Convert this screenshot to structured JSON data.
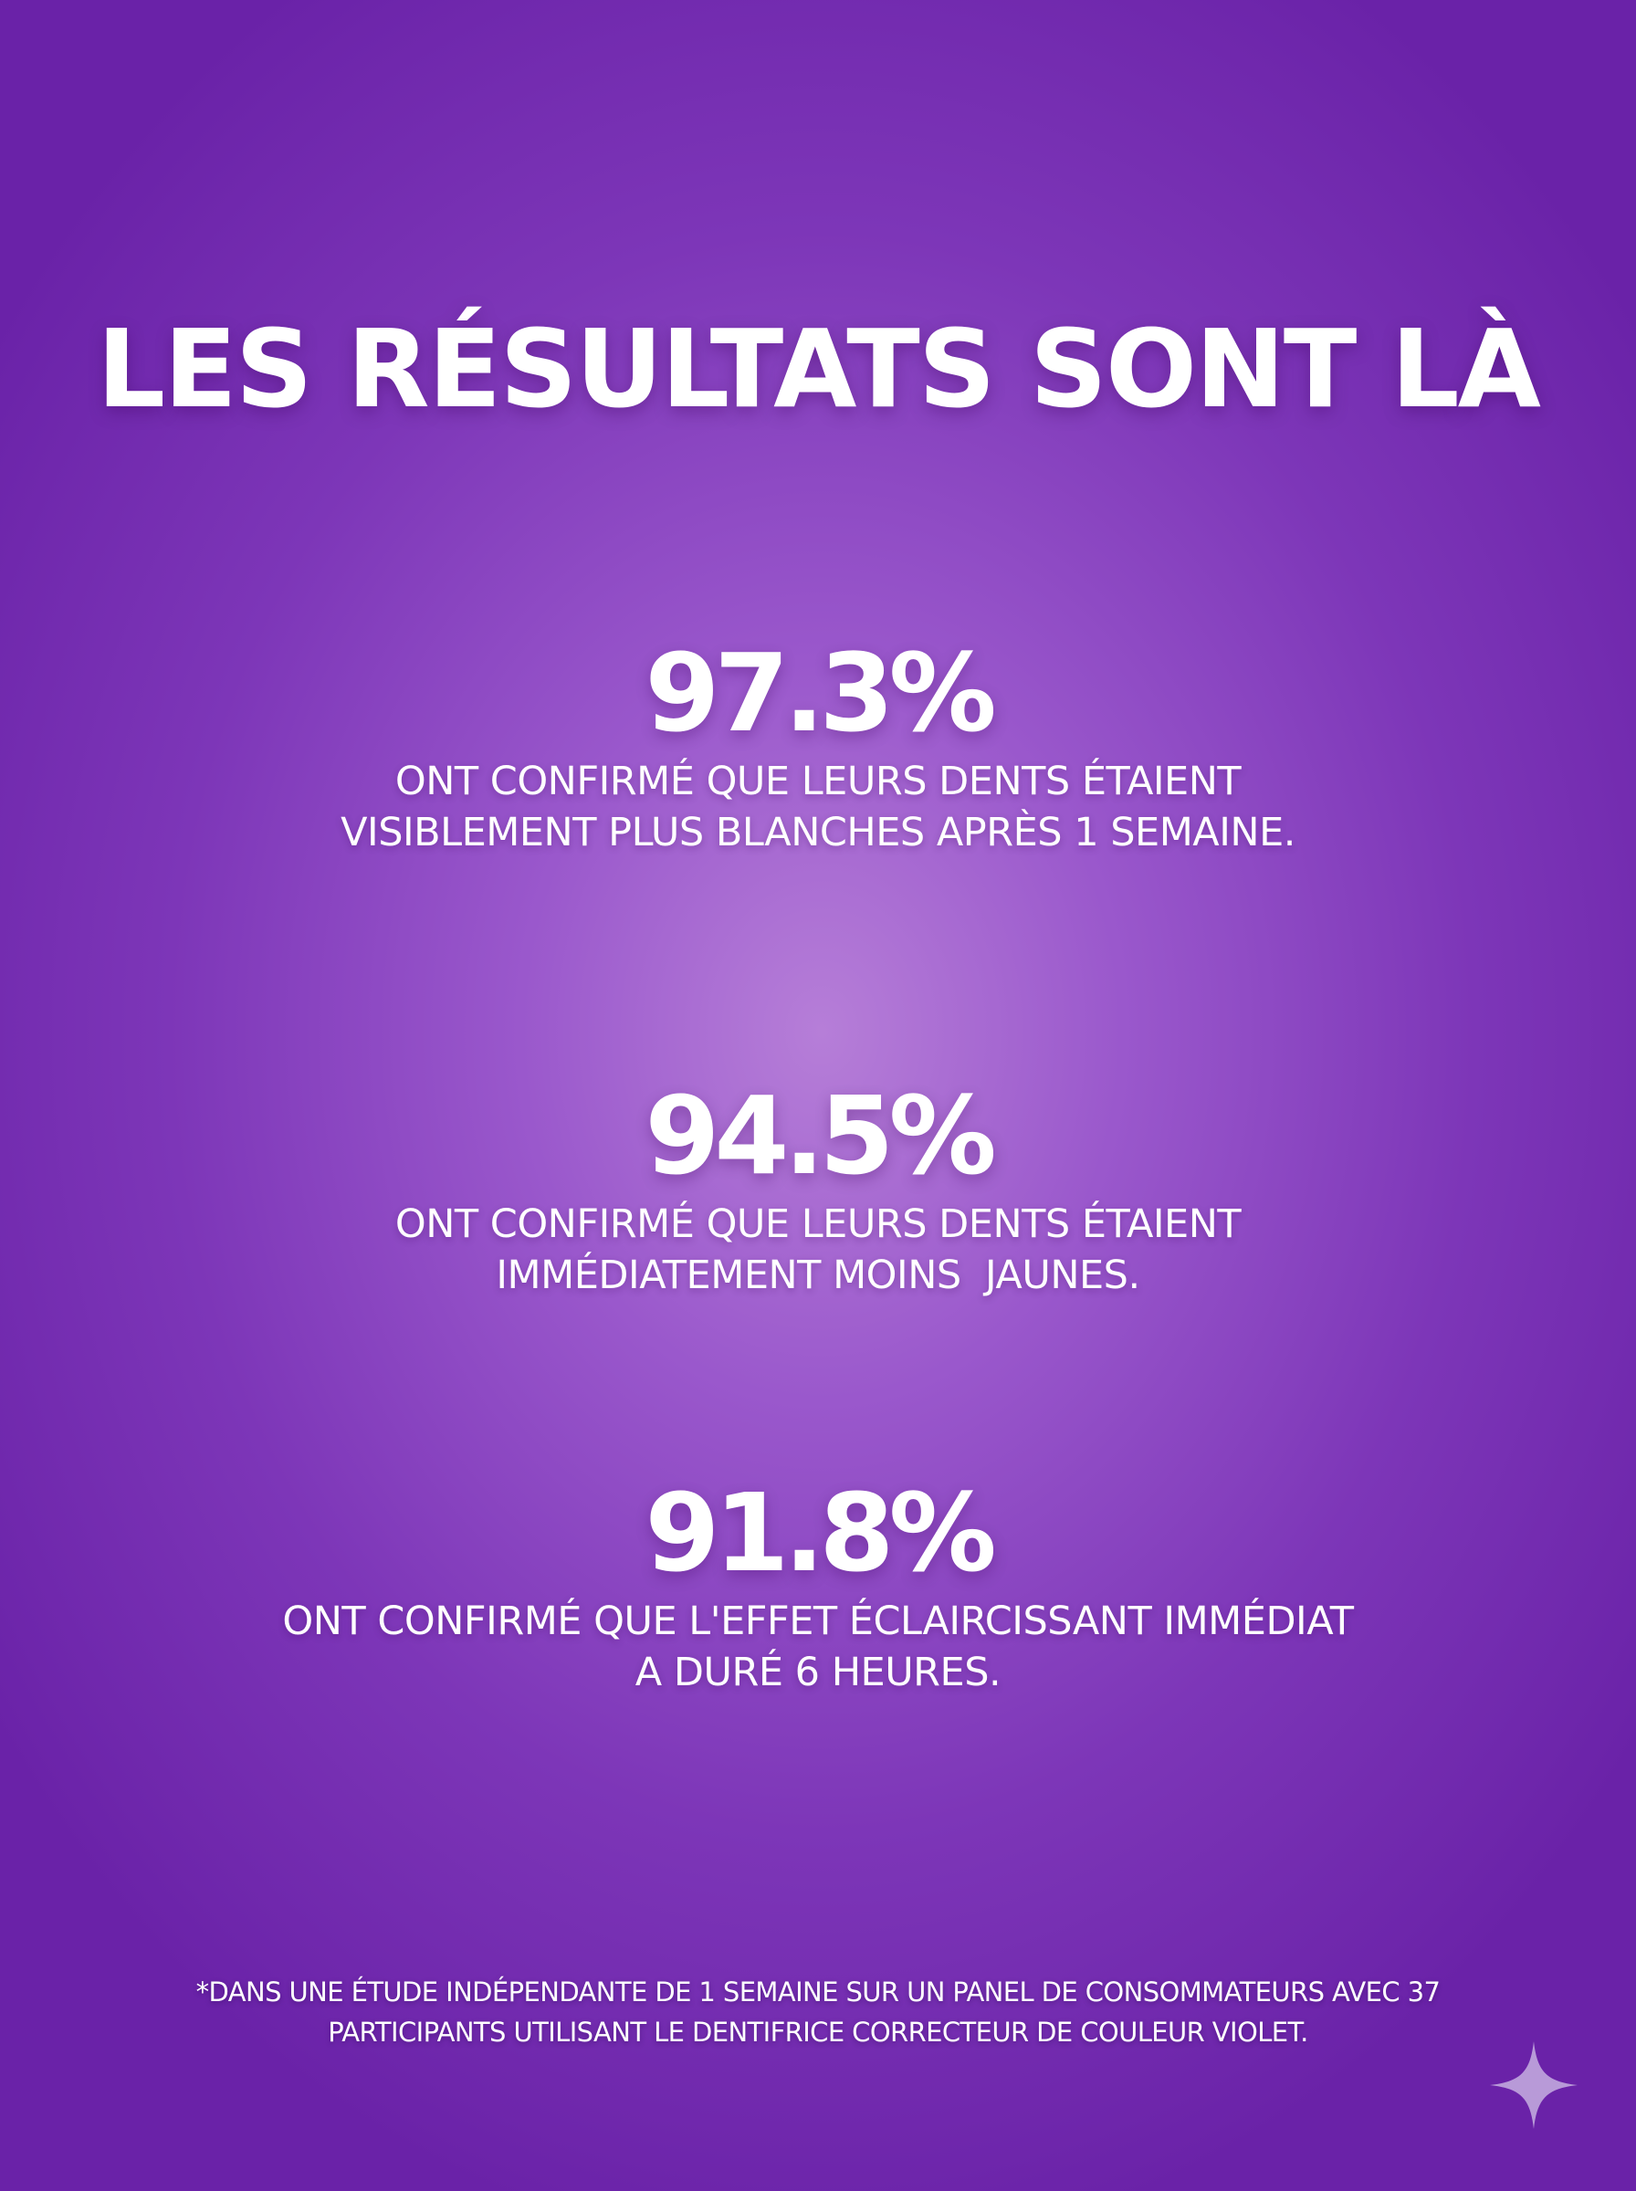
{
  "title": "LES RÉSULTATS SONT LÀ",
  "stats": [
    {
      "value": "97.3%",
      "line1": "ONT CONFIRMÉ QUE LEURS DENTS ÉTAIENT",
      "line2": "VISIBLEMENT PLUS BLANCHES APRÈS 1 SEMAINE."
    },
    {
      "value": "94.5%",
      "line1": "ONT CONFIRMÉ QUE LEURS DENTS ÉTAIENT",
      "line2": "IMMÉDIATEMENT MOINS  JAUNES."
    },
    {
      "value": "91.8%",
      "line1": "ONT CONFIRMÉ QUE L'EFFET ÉCLAIRCISSANT IMMÉDIAT",
      "line2": "A DURÉ 6 HEURES."
    }
  ],
  "footnote": {
    "line1": "*DANS UNE ÉTUDE INDÉPENDANTE DE 1 SEMAINE SUR UN PANEL DE CONSOMMATEURS AVEC 37",
    "line2": "PARTICIPANTS UTILISANT LE DENTIFRICE CORRECTEUR DE COULEUR VIOLET."
  },
  "colors": {
    "background_center": "#b67ed8",
    "background_edge": "#6a22a8",
    "text": "#ffffff",
    "sparkle": "#b89ad8"
  },
  "icons": {
    "corner": "sparkle-icon"
  }
}
